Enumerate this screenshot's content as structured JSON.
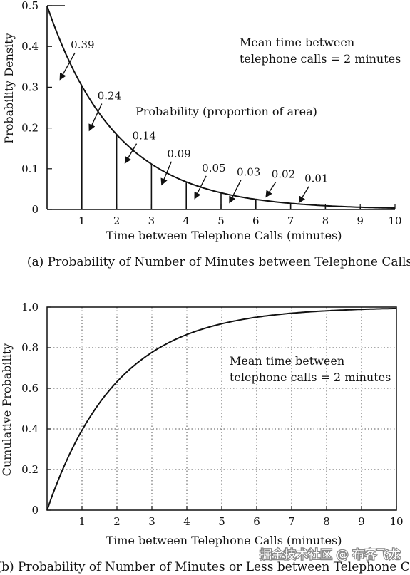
{
  "chart_data": [
    {
      "type": "area",
      "title": "(a) Probability of Number of Minutes between Telephone Calls",
      "xlabel": "Time between Telephone Calls (minutes)",
      "ylabel": "Probability Density",
      "xlim": [
        0,
        10
      ],
      "ylim": [
        0,
        0.5
      ],
      "x_ticks": [
        "1",
        "2",
        "3",
        "4",
        "5",
        "6",
        "7",
        "8",
        "9",
        "10"
      ],
      "y_ticks": [
        "0",
        "0.1",
        "0.2",
        "0.3",
        "0.4",
        "0.5"
      ],
      "curve": {
        "function": "0.5*exp(-x/2)",
        "mean_minutes": 2
      },
      "annotation_area": "Probability (proportion of area)",
      "annotation_mean": [
        "Mean time between",
        "telephone calls = 2 minutes"
      ],
      "slice_labels": [
        {
          "interval": [
            0,
            1
          ],
          "value": "0.39"
        },
        {
          "interval": [
            1,
            2
          ],
          "value": "0.24"
        },
        {
          "interval": [
            2,
            3
          ],
          "value": "0.14"
        },
        {
          "interval": [
            3,
            4
          ],
          "value": "0.09"
        },
        {
          "interval": [
            4,
            5
          ],
          "value": "0.05"
        },
        {
          "interval": [
            5,
            6
          ],
          "value": "0.03"
        },
        {
          "interval": [
            6,
            7
          ],
          "value": "0.02"
        },
        {
          "interval": [
            7,
            8
          ],
          "value": "0.01"
        }
      ],
      "grid": false
    },
    {
      "type": "line",
      "title": "(b) Probability of Number of Minutes or Less between Telephone Calls",
      "xlabel": "Time between Telephone Calls (minutes)",
      "ylabel": "Cumulative Probability",
      "xlim": [
        0,
        10
      ],
      "ylim": [
        0,
        1.0
      ],
      "x_ticks": [
        "1",
        "2",
        "3",
        "4",
        "5",
        "6",
        "7",
        "8",
        "9",
        "10"
      ],
      "y_ticks": [
        "0",
        "0.2",
        "0.4",
        "0.6",
        "0.8",
        "1.0"
      ],
      "curve": {
        "function": "1-exp(-x/2)",
        "mean_minutes": 2
      },
      "annotation_mean": [
        "Mean time between",
        "telephone calls = 2 minutes"
      ],
      "grid": true
    }
  ],
  "watermark": "掘金技术社区 @ 布客飞龙"
}
